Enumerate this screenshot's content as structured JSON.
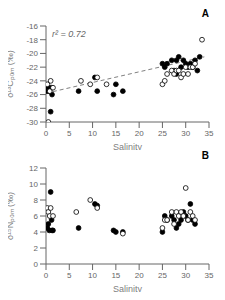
{
  "chart_data": [
    {
      "type": "scatter",
      "title": "A",
      "annotation": "r² = 0.72",
      "xlabel": "Salinity",
      "ylabel": "δ¹³Cₚₒₘ (‰)",
      "xlim": [
        0,
        35
      ],
      "xticks": [
        0,
        5,
        10,
        15,
        20,
        25,
        30,
        35
      ],
      "ylim": [
        -30,
        -16
      ],
      "yticks": [
        -30,
        -28,
        -26,
        -24,
        -22,
        -20,
        -18,
        -16
      ],
      "grid": false,
      "series": [
        {
          "type": "line",
          "line_style": "dashed",
          "color": "gray",
          "x": [
            0,
            34
          ],
          "values": [
            -25.8,
            -20.5
          ]
        },
        {
          "type": "scatter",
          "marker": "filled_circle",
          "color": "black",
          "x": [
            0.3,
            0.5,
            0.7,
            1.0,
            1.2,
            1.3,
            7.0,
            10.5,
            11.0,
            14.5,
            15.0,
            16.5,
            25.0,
            25.5,
            26.0,
            27.0,
            27.5,
            28.0,
            28.0,
            28.5,
            29.0,
            29.5,
            30.0,
            30.5,
            31.0,
            31.5,
            32.0,
            32.5,
            33.0
          ],
          "values": [
            -25.5,
            -25.0,
            -25.5,
            -28.5,
            -25.0,
            -26.0,
            -25.5,
            -23.5,
            -25.5,
            -26.0,
            -24.5,
            -25.5,
            -21.5,
            -22.0,
            -21.5,
            -21.0,
            -22.5,
            -21.0,
            -23.0,
            -20.5,
            -22.0,
            -21.0,
            -21.5,
            -22.0,
            -21.5,
            -22.0,
            -21.0,
            -22.5,
            -20.5
          ]
        },
        {
          "type": "scatter",
          "marker": "open_circle",
          "color": "black",
          "x": [
            0.3,
            0.5,
            0.8,
            1.0,
            1.5,
            7.5,
            9.5,
            11.0,
            13.0,
            25.0,
            25.5,
            26.0,
            27.0,
            27.5,
            28.0,
            28.5,
            29.0,
            29.5,
            30.0,
            30.5,
            31.0,
            31.5,
            32.0,
            33.5
          ],
          "values": [
            -24.5,
            -30.0,
            -25.5,
            -24.0,
            -25.0,
            -24.0,
            -24.5,
            -23.5,
            -24.5,
            -24.5,
            -24.0,
            -23.0,
            -22.5,
            -23.0,
            -22.5,
            -22.5,
            -23.5,
            -23.0,
            -22.0,
            -23.0,
            -22.0,
            -22.0,
            -21.5,
            -18.0
          ]
        }
      ]
    },
    {
      "type": "scatter",
      "title": "B",
      "xlabel": "Salinity",
      "ylabel": "δ¹⁵Nₚₒₘ (‰)",
      "xlim": [
        0,
        35
      ],
      "xticks": [
        0,
        5,
        10,
        15,
        20,
        25,
        30,
        35
      ],
      "ylim": [
        0,
        12
      ],
      "yticks": [
        0,
        2,
        4,
        6,
        8,
        10,
        12
      ],
      "grid": false,
      "series": [
        {
          "type": "scatter",
          "marker": "filled_circle",
          "color": "black",
          "x": [
            0.3,
            0.5,
            0.7,
            1.0,
            1.2,
            1.3,
            1.5,
            7.0,
            10.5,
            11.0,
            14.5,
            15.0,
            16.5,
            25.0,
            25.5,
            26.0,
            27.0,
            27.5,
            28.0,
            28.5,
            29.0,
            29.5,
            30.0,
            30.5,
            31.0,
            31.5,
            32.0
          ],
          "values": [
            4.5,
            5.0,
            4.2,
            9.0,
            5.5,
            4.2,
            4.2,
            4.5,
            7.5,
            7.3,
            4.2,
            4.0,
            4.0,
            4.0,
            6.0,
            5.5,
            6.0,
            5.5,
            4.5,
            5.0,
            5.5,
            6.5,
            6.0,
            5.5,
            7.5,
            5.5,
            5.0
          ]
        },
        {
          "type": "scatter",
          "marker": "open_circle",
          "color": "black",
          "x": [
            0.3,
            0.5,
            0.8,
            1.0,
            1.5,
            6.5,
            9.5,
            11.0,
            16.5,
            25.0,
            25.5,
            26.0,
            27.0,
            27.5,
            28.0,
            28.5,
            29.0,
            29.5,
            30.0,
            30.5,
            31.0,
            31.5,
            32.0
          ],
          "values": [
            7.0,
            6.5,
            6.0,
            7.0,
            6.0,
            6.5,
            8.0,
            7.0,
            3.8,
            4.5,
            5.5,
            5.5,
            6.5,
            5.0,
            6.5,
            6.0,
            6.5,
            6.0,
            9.5,
            5.5,
            6.5,
            6.0,
            5.5
          ]
        }
      ]
    }
  ]
}
